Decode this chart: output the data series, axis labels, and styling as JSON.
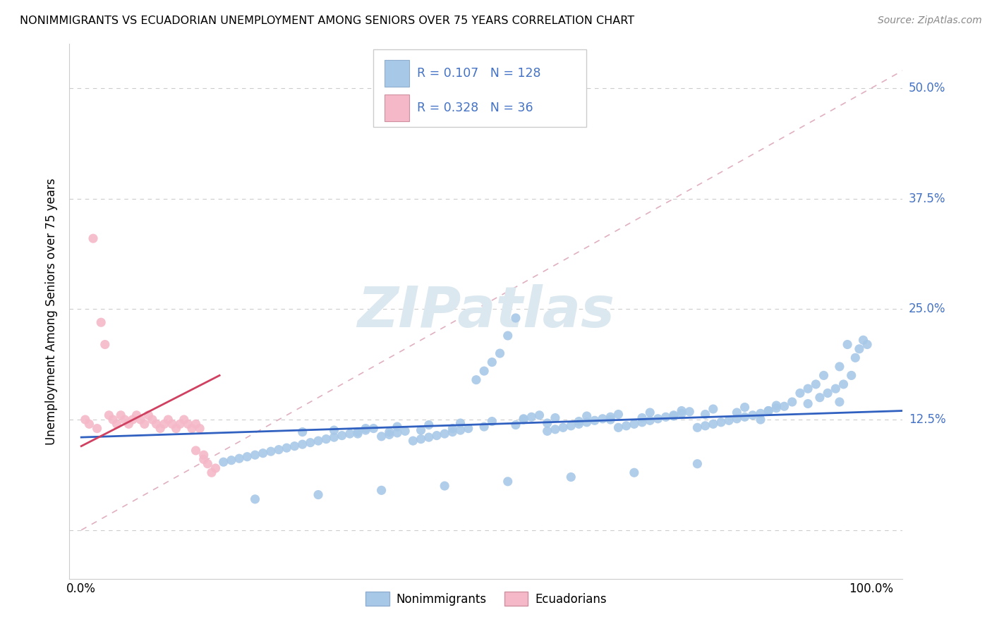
{
  "title": "NONIMMIGRANTS VS ECUADORIAN UNEMPLOYMENT AMONG SENIORS OVER 75 YEARS CORRELATION CHART",
  "source": "Source: ZipAtlas.com",
  "ylabel_label": "Unemployment Among Seniors over 75 years",
  "blue_R": 0.107,
  "blue_N": 128,
  "pink_R": 0.328,
  "pink_N": 36,
  "blue_color": "#a8c8e8",
  "pink_color": "#f5b8c8",
  "blue_line_color": "#3060c0",
  "pink_line_color": "#d04060",
  "diag_line_color": "#e0b0c0",
  "watermark_color": "#dce8f0",
  "grid_color": "#cccccc",
  "ytick_color": "#4472c4",
  "source_color": "#888888",
  "blue_scatter_x": [
    0.97,
    0.98,
    0.96,
    0.94,
    0.93,
    0.92,
    0.91,
    0.9,
    0.89,
    0.88,
    0.87,
    0.86,
    0.85,
    0.84,
    0.83,
    0.82,
    0.81,
    0.8,
    0.79,
    0.78,
    0.77,
    0.76,
    0.75,
    0.74,
    0.73,
    0.72,
    0.71,
    0.7,
    0.69,
    0.68,
    0.67,
    0.66,
    0.65,
    0.64,
    0.63,
    0.62,
    0.61,
    0.6,
    0.59,
    0.58,
    0.57,
    0.56,
    0.55,
    0.54,
    0.53,
    0.52,
    0.51,
    0.5,
    0.49,
    0.48,
    0.47,
    0.46,
    0.45,
    0.44,
    0.43,
    0.42,
    0.41,
    0.4,
    0.39,
    0.38,
    0.37,
    0.36,
    0.35,
    0.34,
    0.33,
    0.32,
    0.31,
    0.3,
    0.29,
    0.28,
    0.27,
    0.26,
    0.25,
    0.24,
    0.23,
    0.22,
    0.21,
    0.2,
    0.19,
    0.18,
    0.87,
    0.83,
    0.79,
    0.75,
    0.71,
    0.67,
    0.63,
    0.59,
    0.55,
    0.51,
    0.47,
    0.43,
    0.39,
    0.35,
    0.96,
    0.92,
    0.88,
    0.84,
    0.8,
    0.76,
    0.72,
    0.68,
    0.64,
    0.6,
    0.56,
    0.52,
    0.48,
    0.44,
    0.4,
    0.36,
    0.32,
    0.28,
    0.86,
    0.78,
    0.7,
    0.62,
    0.54,
    0.46,
    0.38,
    0.3,
    0.22,
    0.99,
    0.995,
    0.985,
    0.975,
    0.965,
    0.955,
    0.945,
    0.935
  ],
  "blue_scatter_y": [
    0.21,
    0.195,
    0.185,
    0.175,
    0.165,
    0.16,
    0.155,
    0.145,
    0.14,
    0.138,
    0.135,
    0.132,
    0.13,
    0.128,
    0.126,
    0.124,
    0.122,
    0.12,
    0.118,
    0.116,
    0.134,
    0.132,
    0.13,
    0.128,
    0.126,
    0.124,
    0.122,
    0.12,
    0.118,
    0.116,
    0.128,
    0.126,
    0.124,
    0.122,
    0.12,
    0.118,
    0.116,
    0.114,
    0.112,
    0.13,
    0.128,
    0.126,
    0.24,
    0.22,
    0.2,
    0.19,
    0.18,
    0.17,
    0.115,
    0.113,
    0.111,
    0.109,
    0.107,
    0.105,
    0.103,
    0.101,
    0.112,
    0.11,
    0.108,
    0.106,
    0.115,
    0.113,
    0.111,
    0.109,
    0.107,
    0.105,
    0.103,
    0.101,
    0.099,
    0.097,
    0.095,
    0.093,
    0.091,
    0.089,
    0.087,
    0.085,
    0.083,
    0.081,
    0.079,
    0.077,
    0.135,
    0.133,
    0.131,
    0.129,
    0.127,
    0.125,
    0.123,
    0.121,
    0.119,
    0.117,
    0.115,
    0.113,
    0.111,
    0.109,
    0.145,
    0.143,
    0.141,
    0.139,
    0.137,
    0.135,
    0.133,
    0.131,
    0.129,
    0.127,
    0.125,
    0.123,
    0.121,
    0.119,
    0.117,
    0.115,
    0.113,
    0.111,
    0.125,
    0.075,
    0.065,
    0.06,
    0.055,
    0.05,
    0.045,
    0.04,
    0.035,
    0.215,
    0.21,
    0.205,
    0.175,
    0.165,
    0.16,
    0.155,
    0.15
  ],
  "pink_scatter_x": [
    0.005,
    0.01,
    0.015,
    0.02,
    0.025,
    0.03,
    0.035,
    0.04,
    0.045,
    0.05,
    0.055,
    0.06,
    0.065,
    0.07,
    0.075,
    0.08,
    0.085,
    0.09,
    0.095,
    0.1,
    0.105,
    0.11,
    0.115,
    0.12,
    0.125,
    0.13,
    0.135,
    0.14,
    0.145,
    0.15,
    0.155,
    0.16,
    0.165,
    0.17,
    0.155,
    0.145
  ],
  "pink_scatter_y": [
    0.125,
    0.12,
    0.33,
    0.115,
    0.235,
    0.21,
    0.13,
    0.125,
    0.12,
    0.13,
    0.125,
    0.12,
    0.125,
    0.13,
    0.125,
    0.12,
    0.13,
    0.125,
    0.12,
    0.115,
    0.12,
    0.125,
    0.12,
    0.115,
    0.12,
    0.125,
    0.12,
    0.115,
    0.12,
    0.115,
    0.08,
    0.075,
    0.065,
    0.07,
    0.085,
    0.09
  ],
  "xlim": [
    -0.015,
    1.04
  ],
  "ylim": [
    -0.055,
    0.55
  ],
  "ytick_vals": [
    0.0,
    0.125,
    0.25,
    0.375,
    0.5
  ],
  "ytick_labels": [
    "",
    "12.5%",
    "25.0%",
    "37.5%",
    "50.0%"
  ]
}
